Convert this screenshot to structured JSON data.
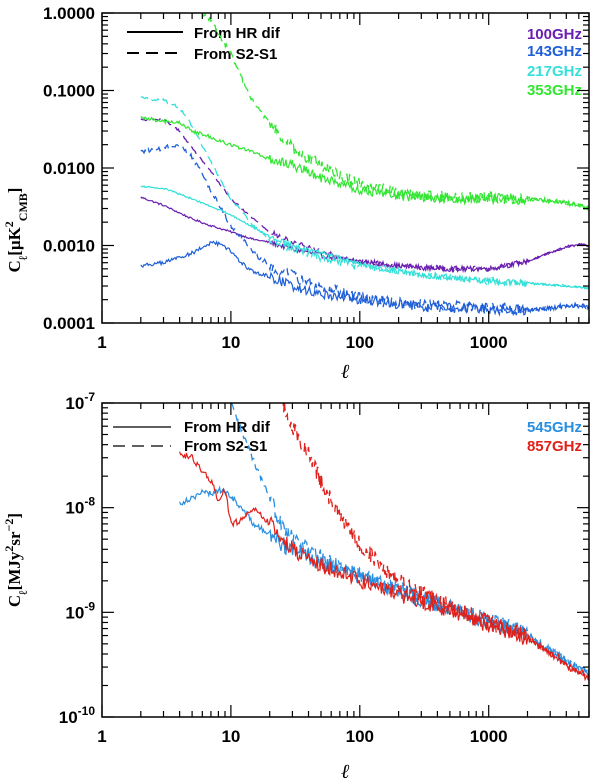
{
  "chart_data": [
    {
      "type": "line",
      "xscale": "log",
      "yscale": "log",
      "xlim": [
        1,
        6000
      ],
      "ylim": [
        0.0001,
        1.0
      ],
      "xlabel": "ℓ",
      "ylabel": "C_ℓ[μK²_CMB]",
      "ylabel_parts": {
        "c": "C",
        "sub_l": "ℓ",
        "open": "[μK",
        "sup": "2",
        "sub": "CMB",
        "close": "]"
      },
      "xticks": [
        {
          "v": 1,
          "label": "1"
        },
        {
          "v": 10,
          "label": "10"
        },
        {
          "v": 100,
          "label": "100"
        },
        {
          "v": 1000,
          "label": "1000"
        }
      ],
      "yticks": [
        {
          "v": 0.0001,
          "label": "0.0001"
        },
        {
          "v": 0.001,
          "label": "0.0010"
        },
        {
          "v": 0.01,
          "label": "0.0100"
        },
        {
          "v": 0.1,
          "label": "0.1000"
        },
        {
          "v": 1.0,
          "label": "1.0000"
        }
      ],
      "legend": {
        "position": "top-left",
        "entries": [
          {
            "label": "From HR dif",
            "style": "solid"
          },
          {
            "label": "From S2-S1",
            "style": "dashed"
          }
        ]
      },
      "bands": [
        {
          "label": "100GHz",
          "color": "#6a1fb0"
        },
        {
          "label": "143GHz",
          "color": "#1f5fd8"
        },
        {
          "label": "217GHz",
          "color": "#34e0d8"
        },
        {
          "label": "353GHz",
          "color": "#33e633"
        }
      ],
      "series": [
        {
          "name": "100GHz From HR dif",
          "band": "100GHz",
          "style": "solid",
          "noise": 0.02,
          "x": [
            2,
            3,
            5,
            7,
            10,
            15,
            20,
            30,
            50,
            70,
            100,
            150,
            200,
            300,
            500,
            1000,
            2000,
            3000,
            4000,
            5000,
            6000
          ],
          "y": [
            0.0042,
            0.0033,
            0.0022,
            0.0018,
            0.0015,
            0.0012,
            0.0011,
            0.0009,
            0.00075,
            0.00068,
            0.00062,
            0.00058,
            0.00055,
            0.00052,
            0.0005,
            0.0005,
            0.00062,
            0.0008,
            0.00095,
            0.00102,
            0.00098
          ]
        },
        {
          "name": "100GHz From S2-S1",
          "band": "100GHz",
          "style": "dashed",
          "noise": 0.02,
          "x": [
            2,
            3,
            4,
            5,
            7,
            10,
            15,
            20,
            30,
            50,
            70,
            100,
            150,
            200,
            300,
            500,
            1000,
            2000,
            3000,
            4000,
            5000,
            6000
          ],
          "y": [
            0.042,
            0.042,
            0.03,
            0.018,
            0.009,
            0.004,
            0.0022,
            0.0015,
            0.0011,
            0.00085,
            0.0007,
            0.00063,
            0.00058,
            0.00055,
            0.00052,
            0.0005,
            0.0005,
            0.00063,
            0.00082,
            0.00097,
            0.00105,
            0.001
          ]
        },
        {
          "name": "143GHz From HR dif",
          "band": "143GHz",
          "style": "solid",
          "noise": 0.04,
          "x": [
            2,
            3,
            5,
            7,
            8,
            10,
            12,
            15,
            20,
            30,
            40,
            50,
            70,
            100,
            150,
            200,
            300,
            500,
            1000,
            2000,
            3000,
            4000,
            5000,
            6000
          ],
          "y": [
            0.00055,
            0.0006,
            0.0008,
            0.00108,
            0.00105,
            0.00085,
            0.0006,
            0.00045,
            0.0004,
            0.0003,
            0.00026,
            0.00024,
            0.00022,
            0.0002,
            0.000185,
            0.000175,
            0.000165,
            0.00016,
            0.000155,
            0.000145,
            0.000155,
            0.000165,
            0.000165,
            0.00016
          ]
        },
        {
          "name": "143GHz From S2-S1",
          "band": "143GHz",
          "style": "dashed",
          "noise": 0.05,
          "x": [
            2,
            3,
            4,
            5,
            7,
            10,
            15,
            20,
            30,
            50,
            70,
            100,
            150,
            200,
            300,
            500,
            1000,
            2000,
            3000,
            4000,
            5000,
            6000
          ],
          "y": [
            0.016,
            0.018,
            0.02,
            0.014,
            0.0052,
            0.0018,
            0.0008,
            0.00055,
            0.0004,
            0.0003,
            0.00025,
            0.00021,
            0.00019,
            0.00018,
            0.00017,
            0.000163,
            0.000157,
            0.000148,
            0.000157,
            0.000168,
            0.000168,
            0.000163
          ]
        },
        {
          "name": "217GHz From HR dif",
          "band": "217GHz",
          "style": "solid",
          "noise": 0.02,
          "x": [
            2,
            3,
            5,
            7,
            10,
            15,
            20,
            30,
            50,
            70,
            100,
            150,
            200,
            300,
            500,
            1000,
            2000,
            3000,
            4000,
            5000,
            6000
          ],
          "y": [
            0.0058,
            0.0055,
            0.004,
            0.0032,
            0.0025,
            0.0017,
            0.0013,
            0.001,
            0.0008,
            0.00068,
            0.00058,
            0.0005,
            0.00046,
            0.00042,
            0.00038,
            0.00035,
            0.00033,
            0.00031,
            0.0003,
            0.00029,
            0.00028
          ]
        },
        {
          "name": "217GHz From S2-S1",
          "band": "217GHz",
          "style": "dashed",
          "noise": 0.03,
          "x": [
            2,
            3,
            4,
            5,
            7,
            10,
            15,
            20,
            30,
            50,
            70,
            100,
            150,
            200,
            300,
            500,
            1000,
            2000,
            3000,
            4000,
            5000,
            6000
          ],
          "y": [
            0.08,
            0.075,
            0.06,
            0.035,
            0.012,
            0.004,
            0.0018,
            0.0012,
            0.0009,
            0.0007,
            0.0006,
            0.00055,
            0.0005,
            0.00046,
            0.00042,
            0.00038,
            0.00035,
            0.00033,
            0.00031,
            0.0003,
            0.00029,
            0.00028
          ]
        },
        {
          "name": "353GHz From HR dif",
          "band": "353GHz",
          "style": "solid",
          "noise": 0.04,
          "x": [
            2,
            3,
            4,
            5,
            7,
            10,
            15,
            20,
            30,
            50,
            70,
            100,
            150,
            200,
            300,
            500,
            1000,
            2000,
            3000,
            4000,
            5000,
            6000
          ],
          "y": [
            0.045,
            0.04,
            0.038,
            0.03,
            0.025,
            0.02,
            0.016,
            0.013,
            0.011,
            0.0075,
            0.0062,
            0.0053,
            0.0047,
            0.0044,
            0.0042,
            0.0041,
            0.0041,
            0.004,
            0.0038,
            0.0036,
            0.0033,
            0.003
          ]
        },
        {
          "name": "353GHz From S2-S1",
          "band": "353GHz",
          "style": "dashed",
          "noise": 0.05,
          "x": [
            6,
            7,
            8,
            10,
            12,
            15,
            20,
            25,
            30,
            40,
            50,
            70,
            100,
            150,
            200,
            300,
            500,
            1000,
            2000,
            3000,
            4000,
            5000,
            6000
          ],
          "y": [
            1.0,
            0.8,
            0.55,
            0.3,
            0.15,
            0.07,
            0.038,
            0.025,
            0.018,
            0.013,
            0.011,
            0.0082,
            0.0062,
            0.0052,
            0.0047,
            0.0043,
            0.0042,
            0.0041,
            0.004,
            0.0038,
            0.0036,
            0.0033,
            0.003
          ]
        }
      ]
    },
    {
      "type": "line",
      "xscale": "log",
      "yscale": "log",
      "xlim": [
        1,
        6000
      ],
      "ylim": [
        1e-10,
        1e-07
      ],
      "xlabel": "ℓ",
      "ylabel": "C_ℓ[MJy²sr⁻²]",
      "ylabel_parts": {
        "c": "C",
        "sub_l": "ℓ",
        "open": "[MJy",
        "sup1": "2",
        "mid": "sr",
        "sup2": "−2",
        "close": "]"
      },
      "xticks": [
        {
          "v": 1,
          "label": "1"
        },
        {
          "v": 10,
          "label": "10"
        },
        {
          "v": 100,
          "label": "100"
        },
        {
          "v": 1000,
          "label": "1000"
        }
      ],
      "yticks": [
        {
          "v": 1e-10,
          "base": "10",
          "exp": "-10"
        },
        {
          "v": 1e-09,
          "base": "10",
          "exp": "-9"
        },
        {
          "v": 1e-08,
          "base": "10",
          "exp": "-8"
        },
        {
          "v": 1e-07,
          "base": "10",
          "exp": "-7"
        }
      ],
      "legend": {
        "position": "top-left",
        "entries": [
          {
            "label": "From HR dif",
            "style": "solid"
          },
          {
            "label": "From S2-S1",
            "style": "dashed"
          }
        ]
      },
      "bands": [
        {
          "label": "545GHz",
          "color": "#2a8fe0"
        },
        {
          "label": "857GHz",
          "color": "#e0201a"
        }
      ],
      "series": [
        {
          "name": "545GHz From HR dif",
          "band": "545GHz",
          "style": "solid",
          "noise": 0.05,
          "x": [
            4,
            5,
            6,
            7,
            8,
            9,
            10,
            12,
            15,
            20,
            25,
            30,
            40,
            50,
            70,
            100,
            150,
            200,
            300,
            500,
            1000,
            1500,
            2000,
            3000,
            4000,
            5000,
            6000
          ],
          "y": [
            1.1e-08,
            1.25e-08,
            1.4e-08,
            1.35e-08,
            1.5e-08,
            1.4e-08,
            1.3e-08,
            1e-08,
            7e-09,
            5.5e-09,
            4.5e-09,
            4e-09,
            3.5e-09,
            3e-09,
            2.6e-09,
            2.2e-09,
            1.8e-09,
            1.6e-09,
            1.35e-09,
            1.1e-09,
            8e-10,
            7e-10,
            6e-10,
            4.3e-10,
            3.4e-10,
            2.9e-10,
            2.6e-10
          ]
        },
        {
          "name": "545GHz From S2-S1",
          "band": "545GHz",
          "style": "dashed",
          "noise": 0.05,
          "x": [
            10,
            12,
            15,
            20,
            25,
            30,
            40,
            50,
            70,
            100,
            150,
            200,
            300,
            500,
            1000,
            1500,
            2000,
            3000,
            4000,
            5000,
            6000
          ],
          "y": [
            1e-07,
            5.5e-08,
            2.8e-08,
            1.2e-08,
            7e-09,
            5.5e-09,
            4e-09,
            3.3e-09,
            2.7e-09,
            2.3e-09,
            1.9e-09,
            1.7e-09,
            1.4e-09,
            1.12e-09,
            8.2e-10,
            7.1e-10,
            6.1e-10,
            4.4e-10,
            3.5e-10,
            2.95e-10,
            2.65e-10
          ]
        },
        {
          "name": "857GHz From HR dif",
          "band": "857GHz",
          "style": "solid",
          "noise": 0.05,
          "x": [
            4,
            5,
            6,
            7,
            8,
            9,
            10,
            12,
            15,
            20,
            25,
            30,
            40,
            50,
            70,
            100,
            150,
            200,
            300,
            500,
            1000,
            1500,
            2000,
            3000,
            4000,
            5000,
            6000
          ],
          "y": [
            3.3e-08,
            3e-08,
            2.2e-08,
            1.8e-08,
            1.2e-08,
            1.5e-08,
            7e-09,
            7.5e-09,
            1e-08,
            7e-09,
            5e-09,
            4e-09,
            3.2e-09,
            2.8e-09,
            2.4e-09,
            2e-09,
            1.7e-09,
            1.5e-09,
            1.28e-09,
            1.05e-09,
            7.6e-10,
            6.6e-10,
            5.6e-10,
            4e-10,
            3.1e-10,
            2.6e-10,
            2.3e-10
          ]
        },
        {
          "name": "857GHz From S2-S1",
          "band": "857GHz",
          "style": "dashed",
          "noise": 0.05,
          "x": [
            25,
            30,
            40,
            50,
            70,
            100,
            150,
            200,
            300,
            500,
            1000,
            1500,
            2000,
            3000,
            4000,
            5000,
            6000
          ],
          "y": [
            1e-07,
            6e-08,
            3.2e-08,
            1.8e-08,
            8e-09,
            4.5e-09,
            2.8e-09,
            2e-09,
            1.5e-09,
            1.15e-09,
            8e-10,
            6.8e-10,
            5.8e-10,
            4.2e-10,
            3.2e-10,
            2.7e-10,
            2.4e-10
          ]
        }
      ]
    }
  ]
}
